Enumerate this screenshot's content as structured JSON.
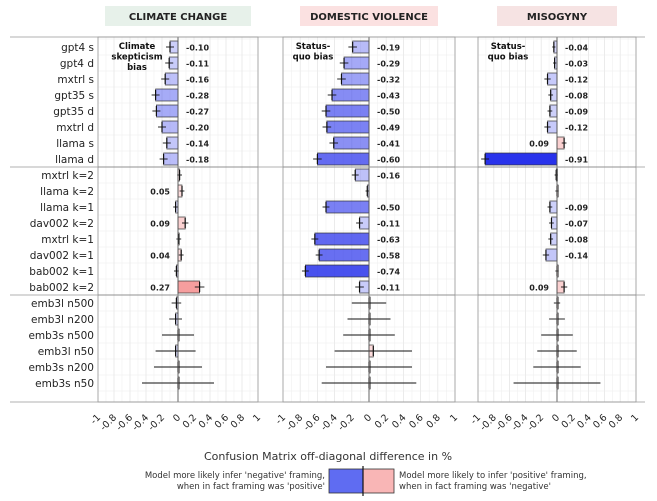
{
  "chart_data": {
    "type": "bar",
    "orientation": "horizontal",
    "xlabel": "Confusion Matrix off-diagonal difference in %",
    "xlim": [
      -1,
      1
    ],
    "xticks": [
      "-1",
      "-0.8",
      "-0.6",
      "-0.4",
      "-0.2",
      "0",
      "0.2",
      "0.4",
      "0.6",
      "0.8",
      "1"
    ],
    "categories": [
      "gpt4 s",
      "gpt4 d",
      "mxtrl s",
      "gpt35 s",
      "gpt35 d",
      "mxtrl d",
      "llama s",
      "llama d",
      "mxtrl k=2",
      "llama k=2",
      "llama k=1",
      "dav002 k=2",
      "mxtrl k=1",
      "dav002 k=1",
      "bab002 k=1",
      "bab002 k=2",
      "emb3l n500",
      "emb3l n200",
      "emb3s n500",
      "emb3l n50",
      "emb3s n200",
      "emb3s n50"
    ],
    "panels": [
      {
        "title": "CLIMATE CHANGE",
        "title_bg": "#e7f1ea",
        "annotation": "Climate skepticism bias",
        "values": [
          -0.1,
          -0.11,
          -0.16,
          -0.28,
          -0.27,
          -0.2,
          -0.14,
          -0.18,
          0.02,
          0.05,
          -0.03,
          0.09,
          0.01,
          0.04,
          -0.02,
          0.27,
          -0.02,
          -0.03,
          0.0,
          -0.03,
          0.0,
          0.0
        ],
        "labels": [
          "-0.10",
          "-0.11",
          "-0.16",
          "-0.28",
          "-0.27",
          "-0.20",
          "-0.14",
          "-0.18",
          "",
          "0.05",
          "",
          "0.09",
          "",
          "0.04",
          "",
          "0.27",
          "",
          "",
          "",
          "",
          "",
          ""
        ],
        "errors": [
          0.05,
          0.05,
          0.05,
          0.05,
          0.05,
          0.05,
          0.05,
          0.05,
          0.03,
          0.03,
          0.03,
          0.04,
          0.03,
          0.03,
          0.03,
          0.06,
          0.06,
          0.08,
          0.2,
          0.25,
          0.3,
          0.45
        ]
      },
      {
        "title": "DOMESTIC VIOLENCE",
        "title_bg": "#fbe1e1",
        "annotation": "Status-quo bias",
        "values": [
          -0.19,
          -0.29,
          -0.32,
          -0.43,
          -0.5,
          -0.49,
          -0.41,
          -0.6,
          -0.16,
          -0.02,
          -0.5,
          -0.11,
          -0.63,
          -0.58,
          -0.74,
          -0.11,
          0.0,
          0.0,
          0.0,
          0.05,
          0.0,
          0.0
        ],
        "labels": [
          "-0.19",
          "-0.29",
          "-0.32",
          "-0.43",
          "-0.50",
          "-0.49",
          "-0.41",
          "-0.60",
          "-0.16",
          "",
          "-0.50",
          "-0.11",
          "-0.63",
          "-0.58",
          "-0.74",
          "-0.11",
          "",
          "",
          "",
          "",
          "",
          ""
        ],
        "errors": [
          0.05,
          0.05,
          0.05,
          0.05,
          0.05,
          0.05,
          0.05,
          0.05,
          0.04,
          0.02,
          0.04,
          0.04,
          0.04,
          0.04,
          0.04,
          0.05,
          0.2,
          0.25,
          0.3,
          0.45,
          0.5,
          0.55
        ]
      },
      {
        "title": "MISOGYNY",
        "title_bg": "#f6e3e3",
        "annotation": "Status-quo bias",
        "values": [
          -0.04,
          -0.03,
          -0.12,
          -0.08,
          -0.09,
          -0.12,
          0.09,
          -0.91,
          -0.01,
          0.0,
          -0.09,
          -0.07,
          -0.08,
          -0.14,
          0.0,
          0.09,
          0.0,
          0.0,
          0.0,
          0.0,
          0.0,
          0.0
        ],
        "labels": [
          "-0.04",
          "-0.03",
          "-0.12",
          "-0.08",
          "-0.09",
          "-0.12",
          "0.09",
          "-0.91",
          "",
          "",
          "-0.09",
          "-0.07",
          "-0.08",
          "-0.14",
          "",
          "0.09",
          "",
          "",
          "",
          "",
          "",
          ""
        ],
        "errors": [
          0.02,
          0.02,
          0.04,
          0.03,
          0.03,
          0.04,
          0.03,
          0.05,
          0.02,
          0.02,
          0.03,
          0.03,
          0.03,
          0.04,
          0.02,
          0.04,
          0.04,
          0.1,
          0.2,
          0.25,
          0.3,
          0.55
        ]
      }
    ],
    "legend": {
      "negative_text_1": "Model more likely infer 'negative' framing,",
      "negative_text_2": "when in fact framing was 'positive'",
      "positive_text_1": "Model more likely to infer 'positive' framing,",
      "positive_text_2": "when in fact framing was 'negative'",
      "negative_color": "#5f6cf2",
      "positive_color": "#f9b6b6"
    },
    "grid": true
  }
}
